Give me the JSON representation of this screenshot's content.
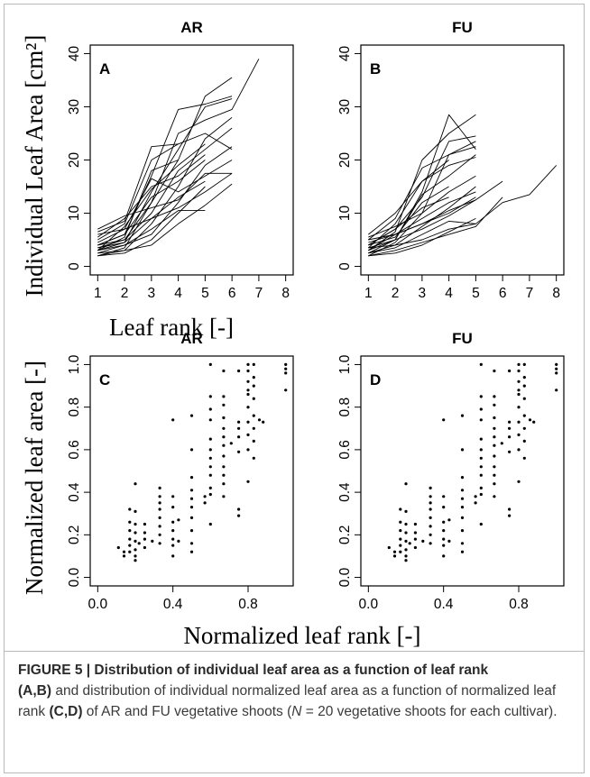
{
  "figure": {
    "top_xlabel": "Leaf rank [-]",
    "top_ylabel": "Individual Leaf Area [cm²]",
    "bottom_xlabel": "Normalized leaf rank [-]",
    "bottom_ylabel": "Normalized leaf area [-]"
  },
  "caption": {
    "fig_label": "FIGURE 5 | Distribution of individual leaf area as a function of leaf rank",
    "part1_bold": "(A,B)",
    "part1_text": " and distribution of individual normalized leaf area as a function of normalized leaf rank ",
    "part2_bold": "(C,D)",
    "part2_text": " of AR and FU vegetative shoots (",
    "n_label": "N",
    "part3_text": " = 20 vegetative shoots for each cultivar)."
  },
  "chart_data": [
    {
      "panel": "A",
      "title": "AR",
      "type": "line",
      "xlim": [
        1,
        8
      ],
      "ylim": [
        0,
        40
      ],
      "xticks": [
        1,
        2,
        3,
        4,
        5,
        6,
        7,
        8
      ],
      "yticks": [
        0,
        10,
        20,
        30,
        40
      ],
      "series": [
        {
          "values": [
            2.0,
            3.5,
            12.0,
            20.0,
            32.0,
            35.5
          ]
        },
        {
          "values": [
            3.0,
            4.5,
            14.0,
            22.0,
            30.0,
            31.5
          ]
        },
        {
          "values": [
            4.0,
            6.0,
            17.0,
            29.5,
            30.5,
            32.0
          ]
        },
        {
          "values": [
            2.5,
            3.0,
            8.0,
            15.0,
            24.0,
            28.0
          ]
        },
        {
          "values": [
            3.5,
            5.0,
            10.0,
            18.0,
            22.0,
            26.0
          ]
        },
        {
          "values": [
            5.0,
            8.0,
            20.0,
            23.0,
            25.0,
            22.0
          ]
        },
        {
          "values": [
            3.0,
            4.0,
            6.0,
            12.0,
            19.0,
            22.5
          ]
        },
        {
          "values": [
            6.5,
            8.5,
            22.5,
            23.0
          ]
        },
        {
          "values": [
            2.0,
            2.5,
            5.0,
            10.0,
            15.0
          ]
        },
        {
          "values": [
            4.5,
            7.0,
            9.0,
            11.0,
            14.0,
            17.5
          ]
        },
        {
          "values": [
            7.0,
            9.5,
            11.0,
            12.5,
            17.5,
            17.5
          ]
        },
        {
          "values": [
            3.0,
            5.5,
            18.0,
            20.0
          ]
        },
        {
          "values": [
            4.0,
            6.0,
            13.0,
            16.0,
            20.0
          ]
        },
        {
          "values": [
            2.5,
            4.0,
            7.0,
            10.5,
            10.5
          ]
        },
        {
          "values": [
            3.5,
            4.5,
            9.0,
            13.0,
            16.0
          ]
        },
        {
          "values": [
            5.5,
            9.0,
            15.0,
            17.0,
            21.0
          ]
        },
        {
          "values": [
            2.0,
            3.0,
            4.0,
            8.0,
            11.5,
            15.5
          ]
        },
        {
          "values": [
            4.0,
            5.0,
            12.0,
            25.0,
            27.5,
            29.5,
            39.0
          ]
        },
        {
          "values": [
            3.0,
            7.5,
            14.5,
            19.0,
            23.0
          ]
        },
        {
          "values": [
            6.0,
            7.0,
            16.5,
            14.0,
            17.0,
            20.0
          ]
        }
      ]
    },
    {
      "panel": "B",
      "title": "FU",
      "type": "line",
      "xlim": [
        1,
        8
      ],
      "ylim": [
        0,
        40
      ],
      "xticks": [
        1,
        2,
        3,
        4,
        5,
        6,
        7,
        8
      ],
      "yticks": [
        0,
        10,
        20,
        30,
        40
      ],
      "series": [
        {
          "values": [
            2.5,
            5.0,
            14.0,
            28.5,
            22.0
          ]
        },
        {
          "values": [
            3.0,
            6.5,
            20.0,
            25.0,
            28.5
          ]
        },
        {
          "values": [
            4.0,
            7.0,
            13.0,
            23.5,
            24.5
          ]
        },
        {
          "values": [
            2.0,
            4.5,
            10.0,
            21.0,
            23.5
          ]
        },
        {
          "values": [
            3.5,
            8.0,
            16.0,
            19.0,
            20.5
          ]
        },
        {
          "values": [
            5.0,
            9.0,
            18.5,
            21.0,
            22.5
          ]
        },
        {
          "values": [
            2.5,
            3.5,
            6.0,
            8.5,
            8.0,
            12.0,
            13.5,
            19.0
          ]
        },
        {
          "values": [
            3.0,
            5.0,
            7.0,
            9.5,
            12.5,
            16.0
          ]
        },
        {
          "values": [
            4.5,
            6.0,
            8.0,
            10.0,
            13.0
          ]
        },
        {
          "values": [
            2.0,
            3.0,
            4.5,
            6.0,
            7.5,
            13.0
          ]
        },
        {
          "values": [
            3.5,
            4.0,
            5.0,
            7.0,
            8.0
          ]
        },
        {
          "values": [
            5.5,
            7.5,
            10.0,
            14.0,
            17.0
          ]
        },
        {
          "values": [
            4.0,
            5.5,
            12.0,
            15.0
          ]
        },
        {
          "values": [
            2.5,
            4.0,
            7.5,
            11.0,
            15.0
          ]
        },
        {
          "values": [
            3.0,
            6.0,
            9.0,
            12.0,
            14.0
          ]
        },
        {
          "values": [
            6.0,
            10.0,
            16.0,
            20.0
          ]
        },
        {
          "values": [
            2.0,
            2.5,
            4.0,
            6.5,
            9.0
          ]
        },
        {
          "values": [
            3.5,
            5.0,
            13.5,
            17.0,
            21.0
          ]
        },
        {
          "values": [
            4.0,
            7.0,
            11.0,
            13.0
          ]
        },
        {
          "values": [
            5.0,
            6.0,
            8.0,
            10.5,
            12.5
          ]
        }
      ]
    },
    {
      "panel": "C",
      "title": "AR",
      "type": "scatter",
      "xlim": [
        0,
        1
      ],
      "ylim": [
        0,
        1
      ],
      "xticks": [
        0.0,
        0.4,
        0.8
      ],
      "yticks": [
        0.0,
        0.2,
        0.4,
        0.6,
        0.8,
        1.0
      ],
      "points": [
        [
          0.11,
          0.14
        ],
        [
          0.14,
          0.1
        ],
        [
          0.14,
          0.12
        ],
        [
          0.17,
          0.18
        ],
        [
          0.17,
          0.22
        ],
        [
          0.17,
          0.12
        ],
        [
          0.17,
          0.15
        ],
        [
          0.17,
          0.32
        ],
        [
          0.17,
          0.26
        ],
        [
          0.2,
          0.1
        ],
        [
          0.2,
          0.08
        ],
        [
          0.2,
          0.13
        ],
        [
          0.2,
          0.17
        ],
        [
          0.2,
          0.21
        ],
        [
          0.2,
          0.25
        ],
        [
          0.2,
          0.31
        ],
        [
          0.2,
          0.44
        ],
        [
          0.22,
          0.16
        ],
        [
          0.25,
          0.14
        ],
        [
          0.25,
          0.18
        ],
        [
          0.25,
          0.21
        ],
        [
          0.25,
          0.25
        ],
        [
          0.29,
          0.17
        ],
        [
          0.33,
          0.16
        ],
        [
          0.33,
          0.2
        ],
        [
          0.33,
          0.24
        ],
        [
          0.33,
          0.28
        ],
        [
          0.33,
          0.32
        ],
        [
          0.33,
          0.35
        ],
        [
          0.33,
          0.38
        ],
        [
          0.33,
          0.42
        ],
        [
          0.4,
          0.1
        ],
        [
          0.4,
          0.15
        ],
        [
          0.4,
          0.18
        ],
        [
          0.4,
          0.22
        ],
        [
          0.4,
          0.26
        ],
        [
          0.4,
          0.33
        ],
        [
          0.4,
          0.38
        ],
        [
          0.4,
          0.74
        ],
        [
          0.43,
          0.17
        ],
        [
          0.43,
          0.27
        ],
        [
          0.5,
          0.12
        ],
        [
          0.5,
          0.16
        ],
        [
          0.5,
          0.22
        ],
        [
          0.5,
          0.28
        ],
        [
          0.5,
          0.33
        ],
        [
          0.5,
          0.37
        ],
        [
          0.5,
          0.41
        ],
        [
          0.5,
          0.47
        ],
        [
          0.5,
          0.6
        ],
        [
          0.5,
          0.76
        ],
        [
          0.57,
          0.35
        ],
        [
          0.57,
          0.38
        ],
        [
          0.6,
          0.25
        ],
        [
          0.6,
          0.39
        ],
        [
          0.6,
          0.42
        ],
        [
          0.6,
          0.48
        ],
        [
          0.6,
          0.52
        ],
        [
          0.6,
          0.56
        ],
        [
          0.6,
          0.6
        ],
        [
          0.6,
          0.65
        ],
        [
          0.6,
          0.74
        ],
        [
          0.6,
          0.79
        ],
        [
          0.6,
          0.85
        ],
        [
          0.6,
          1.0
        ],
        [
          0.67,
          0.38
        ],
        [
          0.67,
          0.44
        ],
        [
          0.67,
          0.48
        ],
        [
          0.67,
          0.52
        ],
        [
          0.67,
          0.57
        ],
        [
          0.67,
          0.62
        ],
        [
          0.67,
          0.66
        ],
        [
          0.67,
          0.7
        ],
        [
          0.67,
          0.75
        ],
        [
          0.67,
          0.81
        ],
        [
          0.67,
          0.85
        ],
        [
          0.67,
          0.97
        ],
        [
          0.71,
          0.63
        ],
        [
          0.75,
          0.29
        ],
        [
          0.75,
          0.32
        ],
        [
          0.75,
          0.59
        ],
        [
          0.75,
          0.66
        ],
        [
          0.75,
          0.7
        ],
        [
          0.75,
          0.73
        ],
        [
          0.75,
          0.97
        ],
        [
          0.8,
          0.45
        ],
        [
          0.8,
          0.6
        ],
        [
          0.8,
          0.67
        ],
        [
          0.8,
          0.73
        ],
        [
          0.8,
          0.8
        ],
        [
          0.8,
          0.86
        ],
        [
          0.8,
          0.88
        ],
        [
          0.8,
          0.92
        ],
        [
          0.8,
          0.97
        ],
        [
          0.8,
          1.0
        ],
        [
          0.83,
          0.56
        ],
        [
          0.83,
          0.64
        ],
        [
          0.83,
          0.7
        ],
        [
          0.83,
          0.76
        ],
        [
          0.83,
          0.84
        ],
        [
          0.83,
          0.9
        ],
        [
          0.83,
          0.94
        ],
        [
          0.83,
          1.0
        ],
        [
          0.86,
          0.74
        ],
        [
          0.88,
          0.73
        ],
        [
          1.0,
          0.88
        ],
        [
          1.0,
          0.96
        ],
        [
          1.0,
          0.98
        ],
        [
          1.0,
          1.0
        ]
      ]
    },
    {
      "panel": "D",
      "title": "FU",
      "type": "scatter",
      "xlim": [
        0,
        1
      ],
      "ylim": [
        0,
        1
      ],
      "xticks": [
        0.0,
        0.4,
        0.8
      ],
      "yticks": [
        0.0,
        0.2,
        0.4,
        0.6,
        0.8,
        1.0
      ],
      "points": [
        [
          0.11,
          0.14
        ],
        [
          0.14,
          0.1
        ],
        [
          0.14,
          0.12
        ],
        [
          0.17,
          0.18
        ],
        [
          0.17,
          0.22
        ],
        [
          0.17,
          0.12
        ],
        [
          0.17,
          0.15
        ],
        [
          0.17,
          0.32
        ],
        [
          0.17,
          0.26
        ],
        [
          0.2,
          0.1
        ],
        [
          0.2,
          0.08
        ],
        [
          0.2,
          0.13
        ],
        [
          0.2,
          0.17
        ],
        [
          0.2,
          0.21
        ],
        [
          0.2,
          0.25
        ],
        [
          0.2,
          0.31
        ],
        [
          0.2,
          0.44
        ],
        [
          0.22,
          0.16
        ],
        [
          0.25,
          0.14
        ],
        [
          0.25,
          0.18
        ],
        [
          0.25,
          0.21
        ],
        [
          0.25,
          0.25
        ],
        [
          0.29,
          0.17
        ],
        [
          0.33,
          0.16
        ],
        [
          0.33,
          0.2
        ],
        [
          0.33,
          0.24
        ],
        [
          0.33,
          0.28
        ],
        [
          0.33,
          0.32
        ],
        [
          0.33,
          0.35
        ],
        [
          0.33,
          0.38
        ],
        [
          0.33,
          0.42
        ],
        [
          0.4,
          0.1
        ],
        [
          0.4,
          0.15
        ],
        [
          0.4,
          0.18
        ],
        [
          0.4,
          0.22
        ],
        [
          0.4,
          0.26
        ],
        [
          0.4,
          0.33
        ],
        [
          0.4,
          0.38
        ],
        [
          0.4,
          0.74
        ],
        [
          0.43,
          0.17
        ],
        [
          0.43,
          0.27
        ],
        [
          0.5,
          0.12
        ],
        [
          0.5,
          0.16
        ],
        [
          0.5,
          0.22
        ],
        [
          0.5,
          0.28
        ],
        [
          0.5,
          0.33
        ],
        [
          0.5,
          0.37
        ],
        [
          0.5,
          0.41
        ],
        [
          0.5,
          0.47
        ],
        [
          0.5,
          0.6
        ],
        [
          0.5,
          0.76
        ],
        [
          0.57,
          0.35
        ],
        [
          0.57,
          0.38
        ],
        [
          0.6,
          0.25
        ],
        [
          0.6,
          0.39
        ],
        [
          0.6,
          0.42
        ],
        [
          0.6,
          0.48
        ],
        [
          0.6,
          0.52
        ],
        [
          0.6,
          0.56
        ],
        [
          0.6,
          0.6
        ],
        [
          0.6,
          0.65
        ],
        [
          0.6,
          0.74
        ],
        [
          0.6,
          0.79
        ],
        [
          0.6,
          0.85
        ],
        [
          0.6,
          1.0
        ],
        [
          0.67,
          0.38
        ],
        [
          0.67,
          0.44
        ],
        [
          0.67,
          0.48
        ],
        [
          0.67,
          0.52
        ],
        [
          0.67,
          0.57
        ],
        [
          0.67,
          0.62
        ],
        [
          0.67,
          0.66
        ],
        [
          0.67,
          0.7
        ],
        [
          0.67,
          0.75
        ],
        [
          0.67,
          0.81
        ],
        [
          0.67,
          0.85
        ],
        [
          0.67,
          0.97
        ],
        [
          0.71,
          0.63
        ],
        [
          0.75,
          0.29
        ],
        [
          0.75,
          0.32
        ],
        [
          0.75,
          0.59
        ],
        [
          0.75,
          0.66
        ],
        [
          0.75,
          0.7
        ],
        [
          0.75,
          0.73
        ],
        [
          0.75,
          0.97
        ],
        [
          0.8,
          0.45
        ],
        [
          0.8,
          0.6
        ],
        [
          0.8,
          0.67
        ],
        [
          0.8,
          0.73
        ],
        [
          0.8,
          0.8
        ],
        [
          0.8,
          0.86
        ],
        [
          0.8,
          0.88
        ],
        [
          0.8,
          0.92
        ],
        [
          0.8,
          0.97
        ],
        [
          0.8,
          1.0
        ],
        [
          0.83,
          0.56
        ],
        [
          0.83,
          0.64
        ],
        [
          0.83,
          0.7
        ],
        [
          0.83,
          0.76
        ],
        [
          0.83,
          0.84
        ],
        [
          0.83,
          0.9
        ],
        [
          0.83,
          0.94
        ],
        [
          0.83,
          1.0
        ],
        [
          0.86,
          0.74
        ],
        [
          0.88,
          0.73
        ],
        [
          1.0,
          0.88
        ],
        [
          1.0,
          0.96
        ],
        [
          1.0,
          0.98
        ],
        [
          1.0,
          1.0
        ]
      ]
    }
  ]
}
